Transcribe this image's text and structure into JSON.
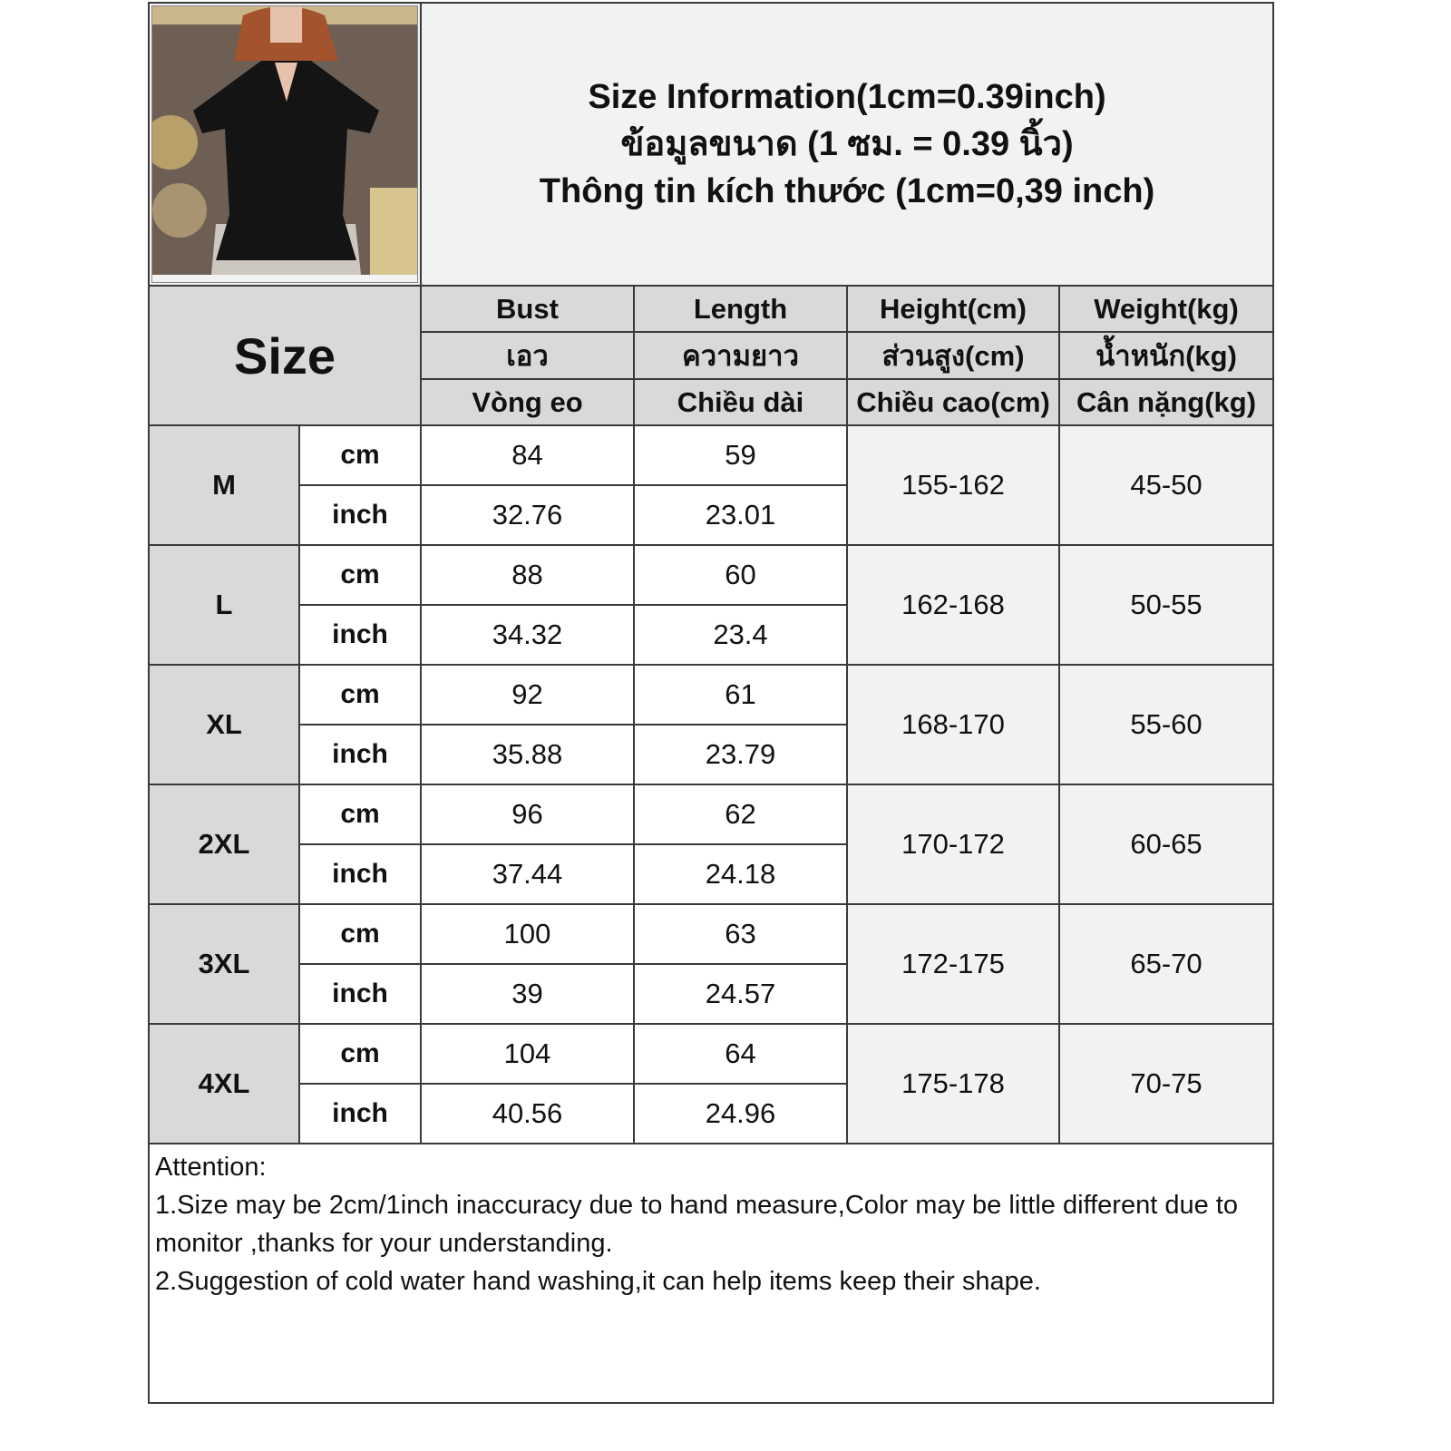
{
  "title_lines": [
    "Size Information(1cm=0.39inch)",
    "ข้อมูลขนาด (1 ซม. = 0.39 นิ้ว)",
    "Thông tin kích thước (1cm=0,39 inch)"
  ],
  "size_header": "Size",
  "columns": [
    {
      "en": "Bust",
      "th": "เอว",
      "vi": "Vòng eo"
    },
    {
      "en": "Length",
      "th": "ความยาว",
      "vi": "Chiều dài"
    },
    {
      "en": "Height(cm)",
      "th": "ส่วนสูง(cm)",
      "vi": "Chiều cao(cm)"
    },
    {
      "en": "Weight(kg)",
      "th": "น้ำหนัก(kg)",
      "vi": "Cân nặng(kg)"
    }
  ],
  "units": {
    "cm": "cm",
    "inch": "inch"
  },
  "rows": [
    {
      "size": "M",
      "bust_cm": "84",
      "length_cm": "59",
      "bust_inch": "32.76",
      "length_inch": "23.01",
      "height": "155-162",
      "weight": "45-50"
    },
    {
      "size": "L",
      "bust_cm": "88",
      "length_cm": "60",
      "bust_inch": "34.32",
      "length_inch": "23.4",
      "height": "162-168",
      "weight": "50-55"
    },
    {
      "size": "XL",
      "bust_cm": "92",
      "length_cm": "61",
      "bust_inch": "35.88",
      "length_inch": "23.79",
      "height": "168-170",
      "weight": "55-60"
    },
    {
      "size": "2XL",
      "bust_cm": "96",
      "length_cm": "62",
      "bust_inch": "37.44",
      "length_inch": "24.18",
      "height": "170-172",
      "weight": "60-65"
    },
    {
      "size": "3XL",
      "bust_cm": "100",
      "length_cm": "63",
      "bust_inch": "39",
      "length_inch": "24.57",
      "height": "172-175",
      "weight": "65-70"
    },
    {
      "size": "4XL",
      "bust_cm": "104",
      "length_cm": "64",
      "bust_inch": "40.56",
      "length_inch": "24.96",
      "height": "175-178",
      "weight": "70-75"
    }
  ],
  "notes": [
    "Attention:",
    "1.Size may be 2cm/1inch inaccuracy due to hand measure,Color may be little different due to monitor ,thanks for your understanding.",
    "2.Suggestion of cold water hand washing,it can help items keep their shape."
  ],
  "colors": {
    "header_gray": "#d9d9d9",
    "light_gray": "#f2f2f2",
    "border": "#3a3a3a"
  },
  "photo": {
    "icon": "product-photo-black-blouse"
  }
}
